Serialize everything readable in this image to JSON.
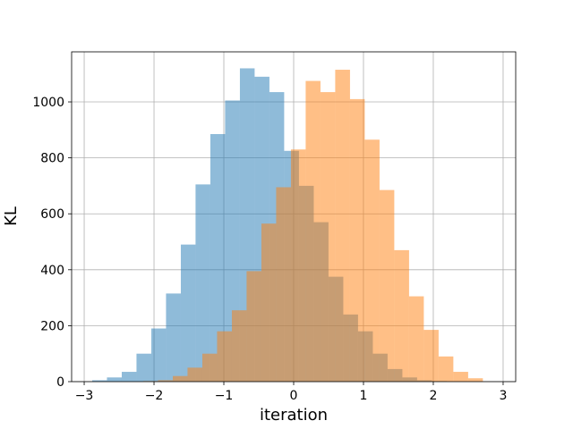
{
  "chart_data": {
    "type": "histogram",
    "x_label": "iteration",
    "y_label": "KL",
    "xlim": [
      -3.18,
      3.18
    ],
    "ylim": [
      0,
      1179
    ],
    "xticks": [
      {
        "value": -3,
        "label": "−3"
      },
      {
        "value": -2,
        "label": "−2"
      },
      {
        "value": -1,
        "label": "−1"
      },
      0,
      1,
      2,
      3
    ],
    "yticks": [
      0,
      200,
      400,
      600,
      800,
      1000
    ],
    "grid": true,
    "series": [
      {
        "color": "#1f77b4",
        "bins": [
          -2.885,
          -2.674,
          -2.462,
          -2.251,
          -2.039,
          -1.828,
          -1.616,
          -1.405,
          -1.193,
          -0.982,
          -0.77,
          -0.559,
          -0.347,
          -0.136,
          0.076,
          0.288,
          0.499,
          0.711,
          0.922,
          1.134,
          1.345,
          1.557,
          1.768,
          1.98,
          2.191
        ],
        "values": [
          5,
          15,
          35,
          100,
          190,
          315,
          490,
          705,
          885,
          1005,
          1120,
          1090,
          1035,
          825,
          700,
          570,
          375,
          240,
          180,
          100,
          45,
          15,
          5,
          2
        ]
      },
      {
        "color": "#ff7f0e",
        "bins": [
          -2.154,
          -1.943,
          -1.731,
          -1.52,
          -1.308,
          -1.097,
          -0.885,
          -0.674,
          -0.462,
          -0.251,
          -0.039,
          0.172,
          0.384,
          0.595,
          0.807,
          1.018,
          1.23,
          1.441,
          1.653,
          1.864,
          2.076,
          2.287,
          2.499,
          2.71
        ],
        "values": [
          2,
          5,
          20,
          50,
          100,
          180,
          255,
          395,
          565,
          695,
          830,
          1075,
          1035,
          1115,
          1010,
          865,
          685,
          470,
          305,
          185,
          90,
          35,
          12
        ]
      }
    ]
  }
}
